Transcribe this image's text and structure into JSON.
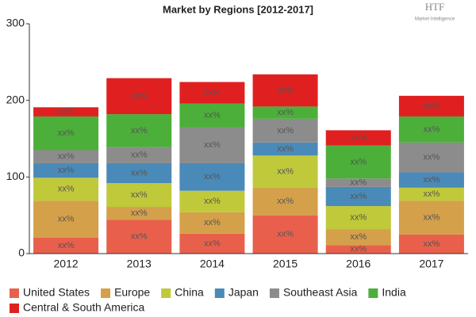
{
  "chart_data": {
    "type": "stacked_bar",
    "title": "Market by Regions [2012-2017]",
    "logo_text": "HTF",
    "logo_subtext": "Market Intelligence",
    "categories": [
      "2012",
      "2013",
      "2014",
      "2015",
      "2016",
      "2017"
    ],
    "ylim": [
      0,
      300
    ],
    "yticks": [
      0,
      100,
      200,
      300
    ],
    "grid": false,
    "legend": "bottom",
    "series": [
      {
        "name": "United States",
        "color": "#e8604c",
        "values": [
          21,
          44,
          26,
          50,
          11,
          25
        ],
        "value_labels": [
          "xx%",
          "xx%",
          "xx%",
          "xx%",
          "xx%",
          "xx%"
        ]
      },
      {
        "name": "Europe",
        "color": "#d4a04a",
        "values": [
          48,
          17,
          28,
          36,
          21,
          44
        ],
        "value_labels": [
          "xx%",
          "xx%",
          "xx%",
          "xx%",
          "xx%",
          "xx%"
        ]
      },
      {
        "name": "China",
        "color": "#bfc93a",
        "values": [
          30,
          31,
          28,
          42,
          30,
          17
        ],
        "value_labels": [
          "xx%",
          "xx%",
          "xx%",
          "xx%",
          "xx%",
          "xx%"
        ]
      },
      {
        "name": "Japan",
        "color": "#4a8ab8",
        "values": [
          19,
          26,
          36,
          17,
          25,
          20
        ],
        "value_labels": [
          "xx%",
          "xx%",
          "xx%",
          "xx%",
          "xx%",
          "xx%"
        ]
      },
      {
        "name": "Southeast Asia",
        "color": "#8c8c8c",
        "values": [
          17,
          21,
          47,
          31,
          11,
          39
        ],
        "value_labels": [
          "xx%",
          "xx%",
          "xx%",
          "xx%",
          "xx%",
          "xx%"
        ]
      },
      {
        "name": "India",
        "color": "#4caf3a",
        "values": [
          44,
          43,
          31,
          16,
          43,
          34
        ],
        "value_labels": [
          "xx%",
          "xx%",
          "xx%",
          "xx%",
          "xx%",
          "xx%"
        ]
      },
      {
        "name": "Central & South America",
        "color": "#e02020",
        "values": [
          12,
          47,
          28,
          42,
          20,
          27
        ],
        "value_labels": [
          "xx%",
          "xx%",
          "xx%",
          "xx%",
          "xx%",
          "xx%"
        ]
      }
    ]
  }
}
